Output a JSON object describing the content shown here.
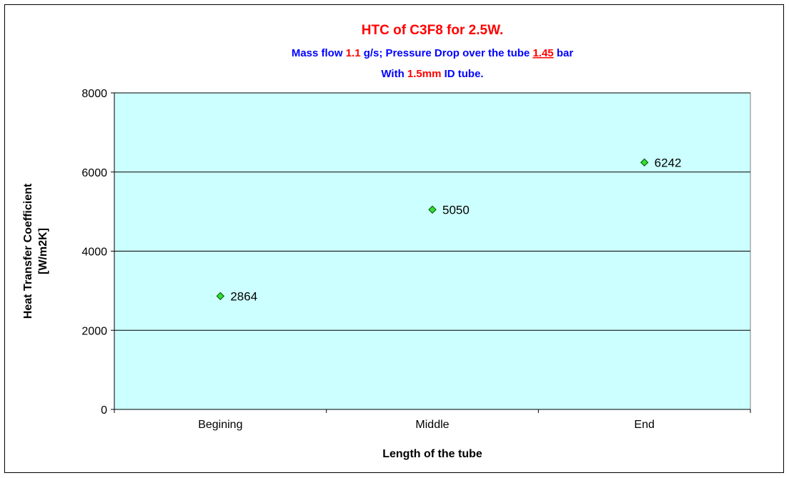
{
  "chart_data": {
    "type": "scatter",
    "title": [
      {
        "text": "HTC of C3F8 for 2.5W.",
        "color": "#ff0000"
      }
    ],
    "subtitle": [
      [
        {
          "text": "Mass flow ",
          "color": "#0000ff"
        },
        {
          "text": "1.1",
          "color": "#ff0000"
        },
        {
          "text": " g/s; Pressure Drop over the tube ",
          "color": "#0000ff"
        },
        {
          "text": "1.45",
          "color": "#ff0000",
          "underline": true
        },
        {
          "text": " bar",
          "color": "#0000ff"
        }
      ],
      [
        {
          "text": "With ",
          "color": "#0000ff"
        },
        {
          "text": "1.5mm",
          "color": "#ff0000"
        },
        {
          "text": " ID tube.",
          "color": "#0000ff"
        }
      ]
    ],
    "x_label": "Length of the tube",
    "y_label": [
      "Heat Transfer Coefficient",
      "[W/m2K]"
    ],
    "categories": [
      "Begining",
      "Middle",
      "End"
    ],
    "values": [
      2864,
      5050,
      6242
    ],
    "color": "#33dd33",
    "ylim": [
      0,
      8000
    ],
    "yticks": [
      0,
      2000,
      4000,
      6000,
      8000
    ],
    "grid": true
  }
}
